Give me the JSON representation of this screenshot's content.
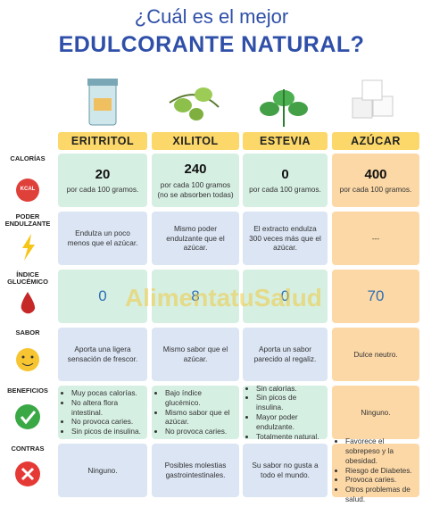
{
  "header": {
    "question": "¿Cuál es el mejor",
    "title": "EDULCORANTE NATURAL?"
  },
  "columns": [
    "ERITRITOL",
    "XILITOL",
    "ESTEVIA",
    "AZÚCAR"
  ],
  "watermark": "AlimentatuSalud",
  "icon_text": "KCAL",
  "rows": [
    {
      "label": "CALORÍAS",
      "cells": [
        {
          "value": 20,
          "note": "por cada 100 gramos."
        },
        {
          "value": 240,
          "note": "por cada 100 gramos (no se absorben todas)"
        },
        {
          "value": 0,
          "note": "por cada 100 gramos."
        },
        {
          "value": 400,
          "note": "por cada 100 gramos."
        }
      ]
    },
    {
      "label": "PODER ENDULZANTE",
      "cells": [
        {
          "text": "Endulza un poco menos que el azúcar."
        },
        {
          "text": "Mismo poder endulzante que el azúcar."
        },
        {
          "text": "El extracto endulza 300 veces más que el azúcar."
        },
        {
          "text": "---"
        }
      ]
    },
    {
      "label": "ÍNDICE GLUCÉMICO",
      "cells": [
        {
          "big": 0
        },
        {
          "big": 8
        },
        {
          "big": 0
        },
        {
          "big": 70
        }
      ]
    },
    {
      "label": "SABOR",
      "cells": [
        {
          "text": "Aporta una ligera sensación de frescor."
        },
        {
          "text": "Mismo sabor que el azúcar."
        },
        {
          "text": "Aporta un sabor parecido al regaliz."
        },
        {
          "text": "Dulce neutro."
        }
      ]
    },
    {
      "label": "BENEFICIOS",
      "cells": [
        {
          "items": [
            "Muy pocas calorías.",
            "No altera flora intestinal.",
            "No provoca caries.",
            "Sin picos de insulina."
          ]
        },
        {
          "items": [
            "Bajo índice glucémico.",
            "Mismo sabor que el azúcar.",
            "No provoca caries."
          ]
        },
        {
          "items": [
            "Sin calorías.",
            "Sin picos de insulina.",
            "Mayor poder endulzante.",
            "Totalmente natural."
          ]
        },
        {
          "text": "Ninguno."
        }
      ]
    },
    {
      "label": "CONTRAS",
      "cells": [
        {
          "text": "Ninguno."
        },
        {
          "text": "Posibles molestias gastrointestinales."
        },
        {
          "text": "Su sabor no gusta a todo el mundo."
        },
        {
          "items": [
            "Favorece el sobrepeso y la obesidad.",
            "Riesgo de Diabetes.",
            "Provoca caries.",
            "Otros problemas de salud."
          ]
        }
      ]
    }
  ]
}
